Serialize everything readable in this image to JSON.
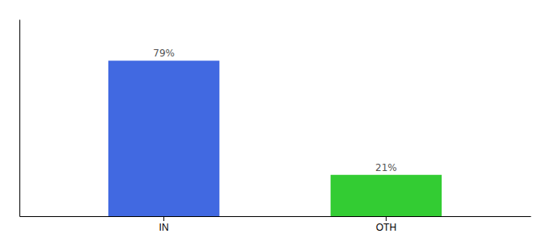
{
  "chart_data": {
    "type": "bar",
    "categories": [
      "IN",
      "OTH"
    ],
    "values": [
      79,
      21
    ],
    "value_labels": [
      "79%",
      "21%"
    ],
    "colors": [
      "#4169e1",
      "#33cc33"
    ],
    "ylim": [
      0,
      100
    ],
    "data_labels": true,
    "tick_labels": "x"
  }
}
